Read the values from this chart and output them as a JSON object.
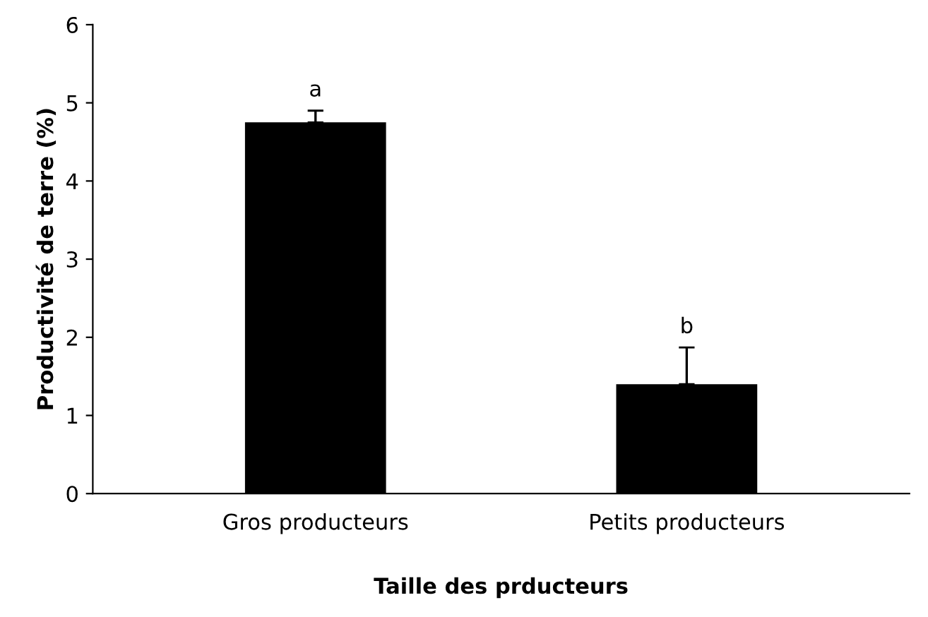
{
  "chart_data": {
    "type": "bar",
    "xlabel": "Taille des prducteurs",
    "ylabel": "Productivité de terre (%)",
    "categories": [
      "Gros producteurs",
      "Petits producteurs"
    ],
    "values": [
      4.75,
      1.4
    ],
    "errors": [
      [
        4.75,
        4.9
      ],
      [
        1.4,
        1.87
      ]
    ],
    "color": "#000000",
    "ylim": [
      0,
      6
    ],
    "yticks": [
      0,
      1,
      2,
      3,
      4,
      5,
      6
    ],
    "grid": false,
    "annotations": [
      {
        "text": "a",
        "x": "Gros producteurs",
        "y": 4.9
      },
      {
        "text": "b",
        "x": "Petits producteurs",
        "y": 1.87
      }
    ]
  }
}
